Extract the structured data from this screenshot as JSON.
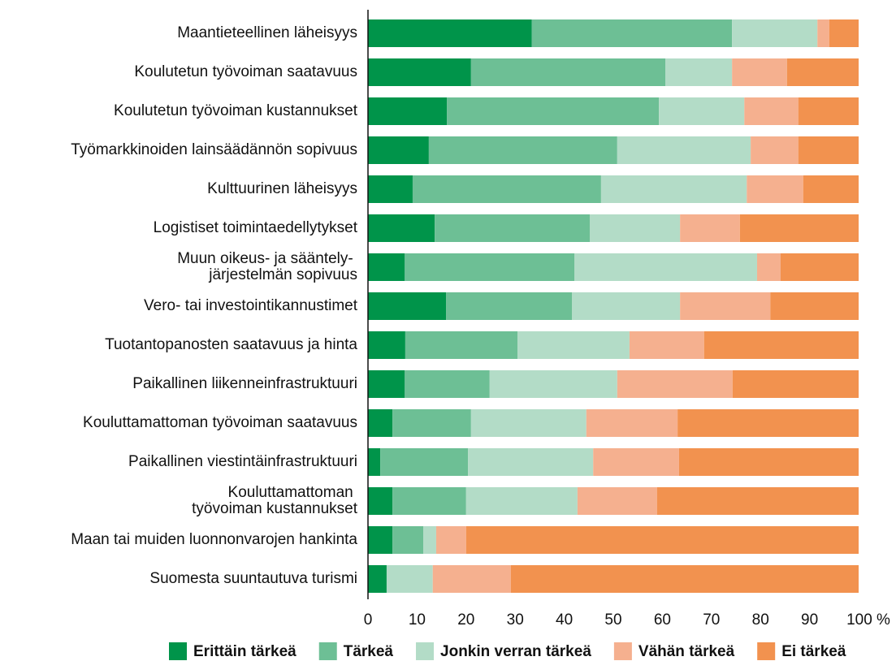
{
  "chart_data": {
    "type": "stacked-bar-horizontal",
    "categories": [
      "Maantieteellinen läheisyys",
      "Koulutetun työvoiman saatavuus",
      "Koulutetun työvoiman kustannukset",
      "Työmarkkinoiden lainsäädännön sopivuus",
      "Kulttuurinen läheisyys",
      "Logistiset toimintaedellytykset",
      "Muun oikeus- ja sääntely-\njärjestelmän sopivuus",
      "Vero- tai investointikannustimet",
      "Tuotantopanosten saatavuus ja hinta",
      "Paikallinen liikenneinfrastruktuuri",
      "Kouluttamattoman työvoiman saatavuus",
      "Paikallinen viestintäinfrastruktuuri",
      "Kouluttamattoman\ntyövoiman kustannukset",
      "Maan tai muiden luonnonvarojen hankinta",
      "Suomesta suuntautuva turismi"
    ],
    "series": [
      {
        "name": "Erittäin tärkeä",
        "color": "#00944a",
        "values": [
          33.4,
          21.0,
          16.1,
          12.4,
          9.1,
          13.6,
          7.5,
          15.9,
          7.6,
          7.5,
          5.0,
          2.5,
          5.0,
          5.0,
          3.8
        ]
      },
      {
        "name": "Tärkeä",
        "color": "#6dbf95",
        "values": [
          40.8,
          39.6,
          43.2,
          38.4,
          38.4,
          31.6,
          34.6,
          25.7,
          22.9,
          17.3,
          16.0,
          17.9,
          15.0,
          6.3,
          0
        ]
      },
      {
        "name": "Jonkin verran tärkeä",
        "color": "#b3dcc7",
        "values": [
          17.4,
          13.6,
          17.4,
          27.2,
          29.7,
          18.4,
          37.2,
          22.0,
          22.8,
          26.0,
          23.5,
          25.5,
          22.7,
          2.6,
          9.4
        ]
      },
      {
        "name": "Vähän tärkeä",
        "color": "#f5b08f",
        "values": [
          2.4,
          11.2,
          11.0,
          9.7,
          11.5,
          12.2,
          4.8,
          18.4,
          15.2,
          23.5,
          18.6,
          17.5,
          16.2,
          6.1,
          15.9
        ]
      },
      {
        "name": "Ei tärkeä",
        "color": "#f2924f",
        "values": [
          6.0,
          14.6,
          12.3,
          12.3,
          11.3,
          24.2,
          15.9,
          18.0,
          31.5,
          25.7,
          36.9,
          36.6,
          41.1,
          80.0,
          70.9
        ]
      }
    ],
    "xlim": [
      0,
      100
    ],
    "xticks": [
      0,
      10,
      20,
      30,
      40,
      50,
      60,
      70,
      80,
      90,
      {
        "value": 100,
        "label": "100 %"
      }
    ],
    "legend": "bottom"
  }
}
